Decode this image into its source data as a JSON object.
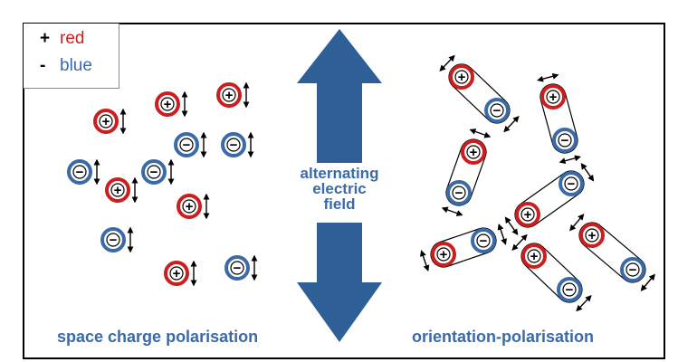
{
  "legend": {
    "plus_symbol": "+",
    "plus_label": "red",
    "minus_symbol": "-",
    "minus_label": "blue"
  },
  "field_label": [
    "alternating",
    "electric",
    "field"
  ],
  "captions": {
    "left": "space charge polarisation",
    "right": "orientation-polarisation"
  },
  "colors": {
    "positive": "#cc1e1e",
    "negative": "#3b6aa8",
    "arrow": "#2f5f97",
    "border": "#000000"
  },
  "glyphs": {
    "positive": "+",
    "negative": "−"
  }
}
